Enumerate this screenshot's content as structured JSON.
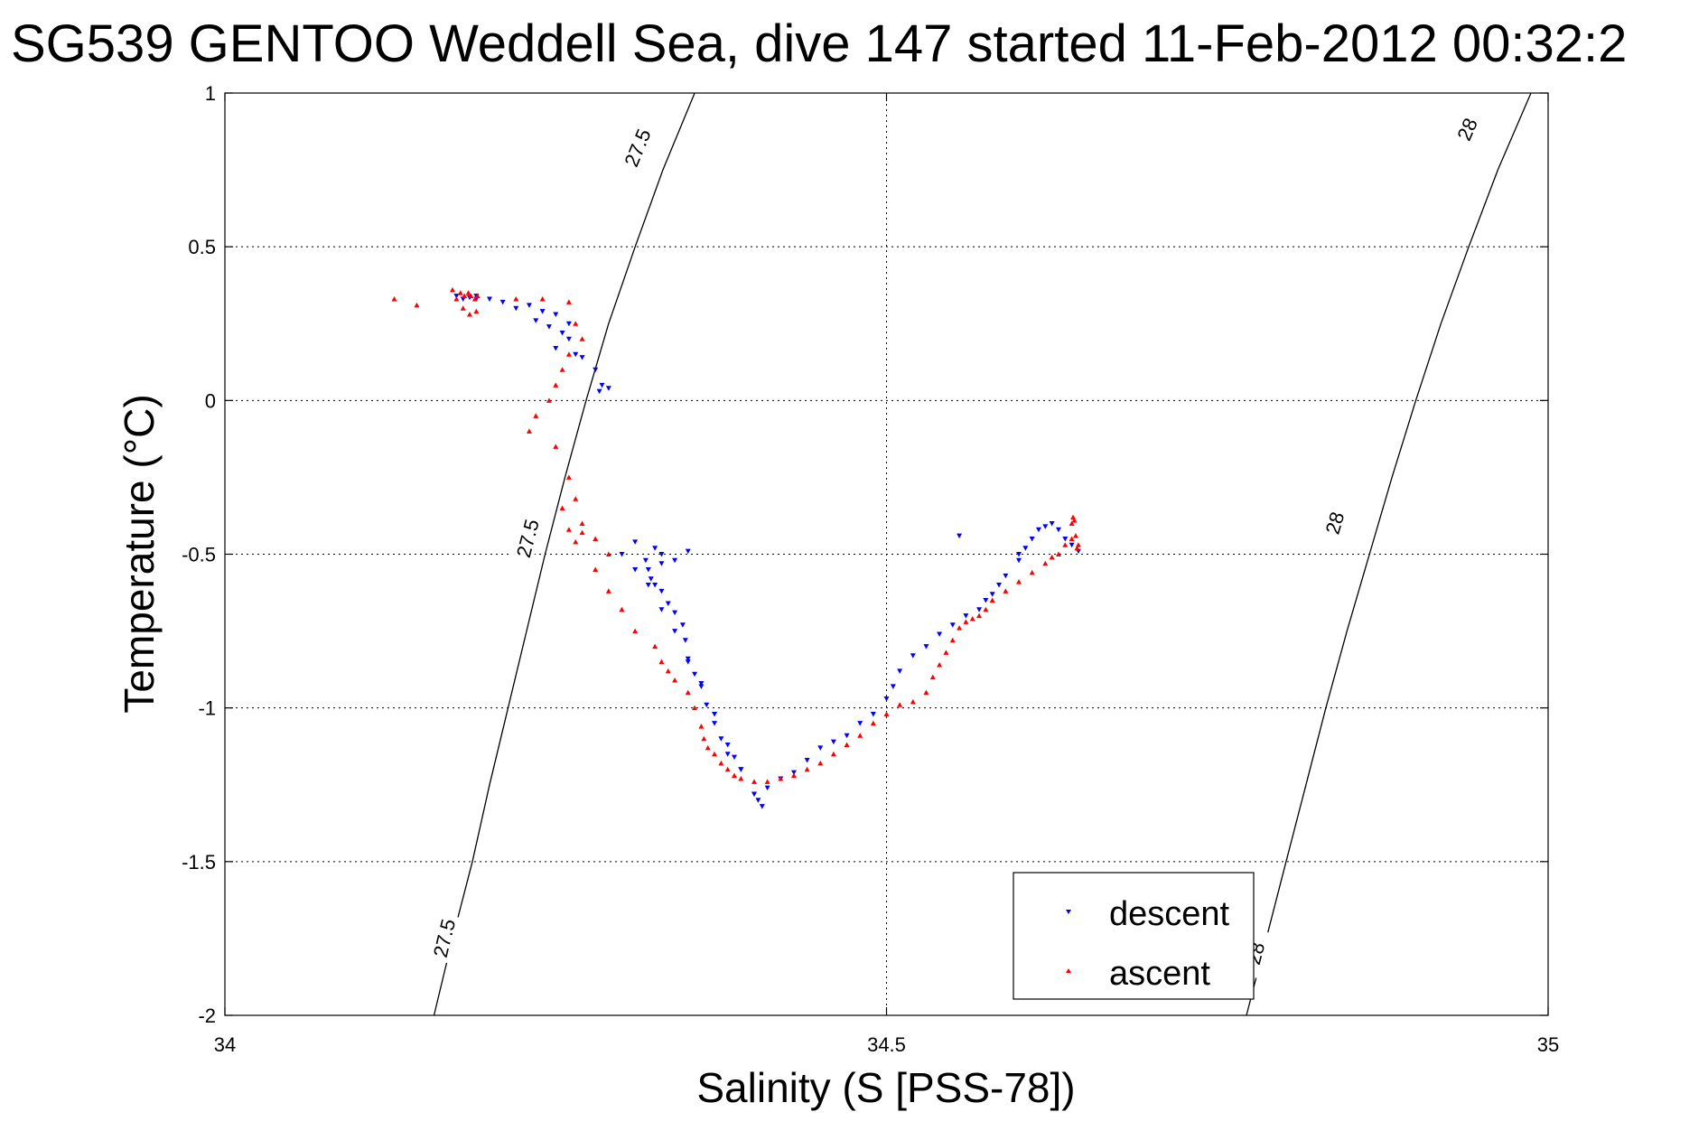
{
  "chart_data": {
    "type": "scatter",
    "title": "SG539 GENTOO Weddell Sea, dive 147 started 11-Feb-2012 00:32:2",
    "xlabel": "Salinity (S [PSS-78])",
    "ylabel": "Temperature (°C)",
    "xlim": [
      34,
      35
    ],
    "ylim": [
      -2,
      1
    ],
    "xticks": [
      34,
      34.5,
      35
    ],
    "xtick_labels": [
      "34",
      "34.5",
      "35"
    ],
    "yticks": [
      -2,
      -1.5,
      -1,
      -0.5,
      0,
      0.5,
      1
    ],
    "ytick_labels": [
      "-2",
      "-1.5",
      "-1",
      "-0.5",
      "0",
      "0.5",
      "1"
    ],
    "grid": true,
    "legend_position": "bottom-right",
    "contours": [
      {
        "label": "27.5",
        "color": "#000000",
        "points": [
          [
            34.158,
            -2.0
          ],
          [
            34.172,
            -1.75
          ],
          [
            34.187,
            -1.5
          ],
          [
            34.2,
            -1.25
          ],
          [
            34.214,
            -1.0
          ],
          [
            34.228,
            -0.75
          ],
          [
            34.242,
            -0.5
          ],
          [
            34.257,
            -0.25
          ],
          [
            34.273,
            0.0
          ],
          [
            34.29,
            0.25
          ],
          [
            34.31,
            0.5
          ],
          [
            34.331,
            0.75
          ],
          [
            34.355,
            1.0
          ]
        ],
        "label_positions": [
          [
            34.167,
            -1.75
          ],
          [
            34.23,
            -0.45
          ],
          [
            34.313,
            0.82
          ]
        ]
      },
      {
        "label": "28",
        "color": "#000000",
        "points": [
          [
            34.772,
            -2.0
          ],
          [
            34.787,
            -1.75
          ],
          [
            34.802,
            -1.5
          ],
          [
            34.817,
            -1.25
          ],
          [
            34.832,
            -1.0
          ],
          [
            34.848,
            -0.75
          ],
          [
            34.865,
            -0.5
          ],
          [
            34.882,
            -0.25
          ],
          [
            34.9,
            0.0
          ],
          [
            34.919,
            0.25
          ],
          [
            34.94,
            0.5
          ],
          [
            34.962,
            0.75
          ],
          [
            34.987,
            1.0
          ]
        ],
        "label_positions": [
          [
            34.78,
            -1.8
          ],
          [
            34.84,
            -0.4
          ],
          [
            34.94,
            0.88
          ]
        ]
      }
    ],
    "series": [
      {
        "name": "descent",
        "color": "#0000ff",
        "marker": "triangle-down",
        "x": [
          34.175,
          34.18,
          34.185,
          34.19,
          34.19,
          34.2,
          34.21,
          34.22,
          34.23,
          34.24,
          34.25,
          34.26,
          34.235,
          34.245,
          34.255,
          34.26,
          34.25,
          34.265,
          34.27,
          34.28,
          34.285,
          34.29,
          34.283,
          34.3,
          34.31,
          34.32,
          34.33,
          34.34,
          34.35,
          34.36,
          34.37,
          34.38,
          34.39,
          34.4,
          34.403,
          34.406,
          34.4,
          34.39,
          34.385,
          34.38,
          34.375,
          34.37,
          34.364,
          34.36,
          34.355,
          34.35,
          34.348,
          34.346,
          34.34,
          34.335,
          34.33,
          34.325,
          34.322,
          34.32,
          34.318,
          34.325,
          34.33,
          34.34,
          34.31,
          34.33,
          34.35,
          34.41,
          34.42,
          34.43,
          34.44,
          34.45,
          34.46,
          34.47,
          34.48,
          34.49,
          34.5,
          34.505,
          34.51,
          34.52,
          34.53,
          34.54,
          34.55,
          34.56,
          34.57,
          34.575,
          34.58,
          34.585,
          34.59,
          34.6,
          34.605,
          34.61,
          34.615,
          34.62,
          34.625,
          34.63,
          34.635,
          34.64,
          34.645,
          34.6,
          34.555
        ],
        "y": [
          0.34,
          0.33,
          0.335,
          0.33,
          0.34,
          0.33,
          0.32,
          0.3,
          0.31,
          0.29,
          0.28,
          0.25,
          0.26,
          0.24,
          0.22,
          0.2,
          0.17,
          0.15,
          0.14,
          0.1,
          0.05,
          0.04,
          0.03,
          -0.5,
          -0.55,
          -0.6,
          -0.68,
          -0.75,
          -0.85,
          -0.92,
          -1.02,
          -1.12,
          -1.2,
          -1.28,
          -1.3,
          -1.32,
          -1.28,
          -1.2,
          -1.16,
          -1.15,
          -1.1,
          -1.05,
          -0.99,
          -0.93,
          -0.89,
          -0.84,
          -0.78,
          -0.73,
          -0.69,
          -0.66,
          -0.62,
          -0.6,
          -0.58,
          -0.55,
          -0.52,
          -0.48,
          -0.5,
          -0.52,
          -0.46,
          -0.53,
          -0.49,
          -1.26,
          -1.23,
          -1.21,
          -1.17,
          -1.13,
          -1.11,
          -1.09,
          -1.05,
          -1.02,
          -0.97,
          -0.93,
          -0.88,
          -0.83,
          -0.8,
          -0.76,
          -0.73,
          -0.7,
          -0.68,
          -0.65,
          -0.63,
          -0.6,
          -0.57,
          -0.52,
          -0.48,
          -0.45,
          -0.42,
          -0.41,
          -0.4,
          -0.42,
          -0.45,
          -0.47,
          -0.49,
          -0.5,
          -0.44
        ]
      },
      {
        "name": "ascent",
        "color": "#ff0000",
        "marker": "triangle-up",
        "x": [
          34.128,
          34.145,
          34.172,
          34.175,
          34.178,
          34.181,
          34.184,
          34.186,
          34.189,
          34.191,
          34.18,
          34.185,
          34.19,
          34.22,
          34.24,
          34.26,
          34.265,
          34.27,
          34.26,
          34.255,
          34.25,
          34.245,
          34.235,
          34.23,
          34.25,
          34.26,
          34.265,
          34.27,
          34.28,
          34.29,
          34.255,
          34.26,
          34.265,
          34.27,
          34.28,
          34.29,
          34.3,
          34.31,
          34.325,
          34.33,
          34.335,
          34.34,
          34.35,
          34.355,
          34.36,
          34.362,
          34.365,
          34.37,
          34.375,
          34.38,
          34.385,
          34.39,
          34.4,
          34.41,
          34.42,
          34.43,
          34.44,
          34.45,
          34.46,
          34.47,
          34.48,
          34.49,
          34.5,
          34.51,
          34.52,
          34.53,
          34.535,
          34.54,
          34.545,
          34.55,
          34.555,
          34.56,
          34.565,
          34.57,
          34.575,
          34.58,
          34.59,
          34.6,
          34.61,
          34.62,
          34.63,
          34.635,
          34.64,
          34.645,
          34.643,
          34.64,
          34.641,
          34.642,
          34.644,
          34.625
        ],
        "y": [
          0.33,
          0.31,
          0.36,
          0.33,
          0.35,
          0.34,
          0.35,
          0.34,
          0.33,
          0.34,
          0.3,
          0.28,
          0.29,
          0.33,
          0.33,
          0.32,
          0.25,
          0.2,
          0.15,
          0.1,
          0.05,
          0.0,
          -0.05,
          -0.1,
          -0.15,
          -0.25,
          -0.32,
          -0.4,
          -0.45,
          -0.5,
          -0.35,
          -0.42,
          -0.46,
          -0.43,
          -0.55,
          -0.62,
          -0.68,
          -0.75,
          -0.8,
          -0.85,
          -0.88,
          -0.91,
          -0.95,
          -1.0,
          -1.06,
          -1.1,
          -1.13,
          -1.15,
          -1.18,
          -1.2,
          -1.22,
          -1.23,
          -1.24,
          -1.24,
          -1.23,
          -1.22,
          -1.2,
          -1.18,
          -1.15,
          -1.12,
          -1.09,
          -1.05,
          -1.02,
          -0.99,
          -0.98,
          -0.95,
          -0.9,
          -0.86,
          -0.82,
          -0.78,
          -0.74,
          -0.72,
          -0.71,
          -0.7,
          -0.68,
          -0.65,
          -0.62,
          -0.59,
          -0.56,
          -0.53,
          -0.5,
          -0.47,
          -0.45,
          -0.47,
          -0.44,
          -0.4,
          -0.38,
          -0.39,
          -0.48,
          -0.51
        ]
      }
    ]
  }
}
